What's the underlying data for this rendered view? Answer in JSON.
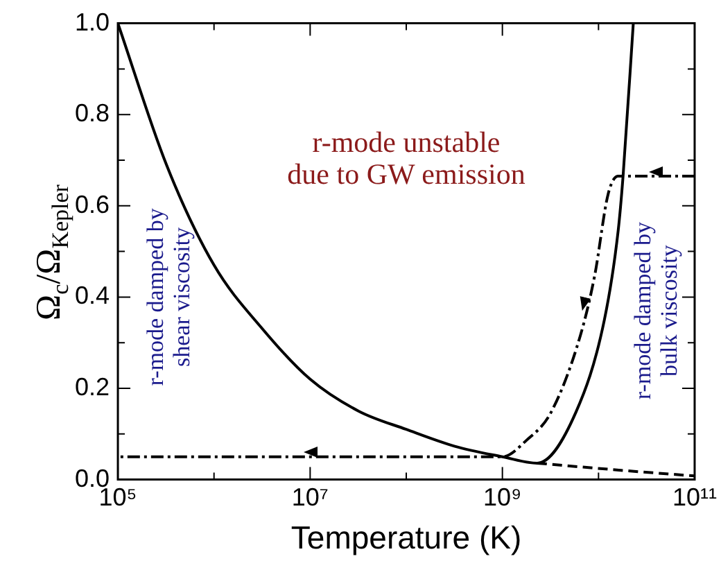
{
  "chart_data": {
    "type": "line",
    "xlabel": "Temperature (K)",
    "ylabel": "Ω$_{c}$/Ω$_{Kepler}$",
    "log": "x",
    "xlim": [
      100000.0,
      100000000000.0
    ],
    "ylim": [
      0,
      1
    ],
    "xticks": [
      {
        "value": 100000.0,
        "label": "10⁵"
      },
      {
        "value": 1000000.0,
        "label": null
      },
      {
        "value": 10000000.0,
        "label": "10⁷"
      },
      {
        "value": 100000000.0,
        "label": null
      },
      {
        "value": 1000000000.0,
        "label": "10⁹"
      },
      {
        "value": 10000000000.0,
        "label": null
      },
      {
        "value": 100000000000.0,
        "label": "10¹¹"
      }
    ],
    "yticks": [
      {
        "value": 0,
        "label": "0.0"
      },
      {
        "value": 0.1,
        "label": null
      },
      {
        "value": 0.2,
        "label": "0.2"
      },
      {
        "value": 0.3,
        "label": null
      },
      {
        "value": 0.4,
        "label": "0.4"
      },
      {
        "value": 0.5,
        "label": null
      },
      {
        "value": 0.6,
        "label": "0.6"
      },
      {
        "value": 0.7,
        "label": null
      },
      {
        "value": 0.8,
        "label": "0.8"
      },
      {
        "value": 0.9,
        "label": null
      },
      {
        "value": 1,
        "label": "1.0"
      }
    ],
    "grid": false,
    "legend": false,
    "marker": "none",
    "series": [
      {
        "color": "#000000",
        "line_style": "solid",
        "x": [
          100000.0,
          320000.0,
          1000000.0,
          3200000.0,
          10000000.0,
          32000000.0,
          100000000.0,
          320000000.0,
          1000000000.0,
          2300000000.0,
          5800000000.0,
          11500000000.0,
          16000000000.0,
          18000000000.0,
          23000000000.0
        ],
        "values": [
          1.0,
          0.69,
          0.47,
          0.33,
          0.22,
          0.15,
          0.11,
          0.073,
          0.05,
          0.036,
          0.147,
          0.35,
          0.545,
          0.665,
          1.0
        ]
      },
      {
        "color": "#000000",
        "line_style": "dashed",
        "x": [
          2300000000.0,
          18000000000.0,
          100000000000.0
        ],
        "values": [
          0.036,
          0.02,
          0.008
        ]
      },
      {
        "color": "#000000",
        "line_style": "dashdot",
        "x": [
          100000000000.0,
          16000000000.0,
          12600000000.0,
          9100000000.0,
          6500000000.0,
          3200000000.0,
          1800000000.0,
          1000000000.0,
          100000.0
        ],
        "values": [
          0.665,
          0.665,
          0.626,
          0.446,
          0.317,
          0.147,
          0.087,
          0.05,
          0.05
        ]
      }
    ],
    "annotations": [
      "r-mode unstable\ndue to GW emission",
      "r-mode damped by\nshear viscosity",
      "r-mode damped by\nbulk viscosity"
    ]
  }
}
